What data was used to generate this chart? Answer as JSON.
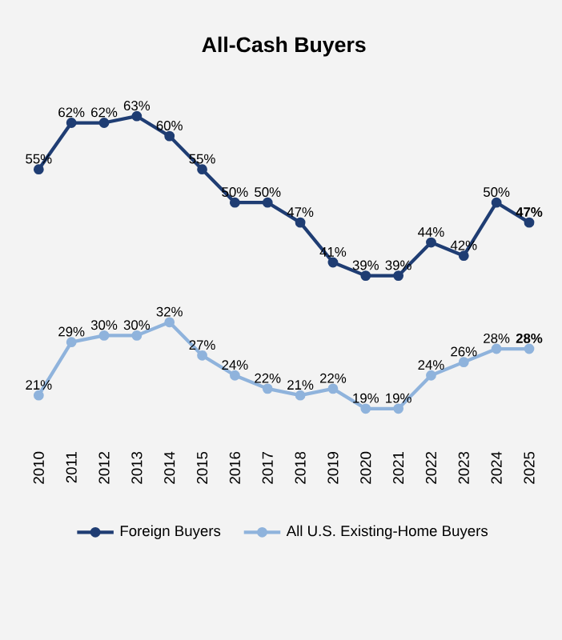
{
  "chart_data": {
    "type": "line",
    "title": "All-Cash Buyers",
    "categories": [
      "2010",
      "2011",
      "2012",
      "2013",
      "2014",
      "2015",
      "2016",
      "2017",
      "2018",
      "2019",
      "2020",
      "2021",
      "2022",
      "2023",
      "2024",
      "2025"
    ],
    "series": [
      {
        "name": "Foreign Buyers",
        "color": "#1f3d73",
        "values": [
          55,
          62,
          62,
          63,
          60,
          55,
          50,
          50,
          47,
          41,
          39,
          39,
          44,
          42,
          50,
          47
        ],
        "value_labels": [
          "55%",
          "62%",
          "62%",
          "63%",
          "60%",
          "55%",
          "50%",
          "50%",
          "47%",
          "41%",
          "39%",
          "39%",
          "44%",
          "42%",
          "50%",
          "**47%**"
        ]
      },
      {
        "name": "All U.S. Existing-Home Buyers",
        "color": "#8fb3dc",
        "values": [
          21,
          29,
          30,
          30,
          32,
          27,
          24,
          22,
          21,
          22,
          19,
          19,
          24,
          26,
          28,
          28
        ],
        "value_labels": [
          "21%",
          "29%",
          "30%",
          "30%",
          "32%",
          "27%",
          "24%",
          "22%",
          "21%",
          "22%",
          "19%",
          "19%",
          "24%",
          "26%",
          "28%",
          "**28%**"
        ]
      }
    ],
    "grid": false,
    "legend": "bottom",
    "marker": "circle",
    "line_style": "solid"
  }
}
